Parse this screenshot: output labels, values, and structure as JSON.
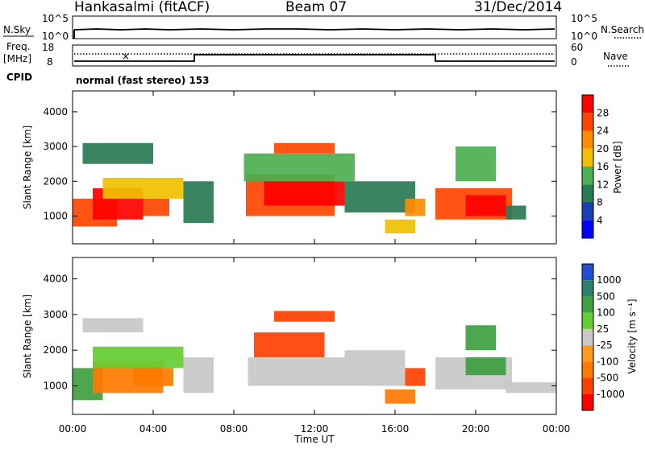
{
  "header": {
    "station": "Hankasalmi (fitACF)",
    "beam": "Beam 07",
    "date": "31/Dec/2014"
  },
  "panels": {
    "nsky": {
      "label": "N.Sky",
      "ticks_left": [
        "10^5",
        "10^0"
      ],
      "ticks_right": [
        "10^5",
        "10^0"
      ],
      "right_label": "N.Search"
    },
    "freq": {
      "label_line1": "Freq.",
      "label_line2": "[MHz]",
      "ticks_left": [
        "18",
        "8"
      ],
      "ticks_right": [
        "60",
        "0"
      ],
      "right_label": "Nave"
    },
    "cpid": {
      "label": "CPID",
      "text": "normal (fast stereo) 153"
    }
  },
  "chart_data": [
    {
      "type": "heatmap",
      "title": "",
      "ylabel": "Slant Range [km]",
      "xlabel": "",
      "ylim": [
        200,
        4600
      ],
      "yticks": [
        "1000",
        "2000",
        "3000",
        "4000"
      ],
      "colorbar": {
        "label": "Power [dB]",
        "ticks": [
          "28",
          "24",
          "20",
          "16",
          "12",
          "8",
          "4"
        ],
        "colors": [
          "#0000ff",
          "#1a3fb5",
          "#2a7a55",
          "#4caf50",
          "#f0c000",
          "#ff8c00",
          "#ff4500",
          "#ff0000"
        ]
      },
      "regions": [
        {
          "t": [
            0.0,
            2.2
          ],
          "r": [
            700,
            1500
          ],
          "value": 26
        },
        {
          "t": [
            1.0,
            3.5
          ],
          "r": [
            900,
            1800
          ],
          "value": 28
        },
        {
          "t": [
            3.5,
            4.8
          ],
          "r": [
            1000,
            1500
          ],
          "value": 26
        },
        {
          "t": [
            1.5,
            5.5
          ],
          "r": [
            1500,
            2100
          ],
          "value": 16
        },
        {
          "t": [
            0.5,
            4.0
          ],
          "r": [
            2500,
            3100
          ],
          "value": 8
        },
        {
          "t": [
            5.5,
            7.0
          ],
          "r": [
            800,
            2000
          ],
          "value": 8
        },
        {
          "t": [
            8.6,
            13.0
          ],
          "r": [
            1000,
            2200
          ],
          "value": 26
        },
        {
          "t": [
            9.5,
            13.5
          ],
          "r": [
            1300,
            2000
          ],
          "value": 28
        },
        {
          "t": [
            8.5,
            14.0
          ],
          "r": [
            2000,
            2800
          ],
          "value": 14
        },
        {
          "t": [
            10.0,
            13.0
          ],
          "r": [
            2800,
            3100
          ],
          "value": 24
        },
        {
          "t": [
            13.5,
            17.0
          ],
          "r": [
            1100,
            2000
          ],
          "value": 10
        },
        {
          "t": [
            15.5,
            17.0
          ],
          "r": [
            500,
            900
          ],
          "value": 16
        },
        {
          "t": [
            16.5,
            17.5
          ],
          "r": [
            1000,
            1500
          ],
          "value": 20
        },
        {
          "t": [
            18.0,
            21.8
          ],
          "r": [
            900,
            1800
          ],
          "value": 26
        },
        {
          "t": [
            19.5,
            21.5
          ],
          "r": [
            1000,
            1600
          ],
          "value": 28
        },
        {
          "t": [
            19.0,
            21.0
          ],
          "r": [
            2000,
            3000
          ],
          "value": 14
        },
        {
          "t": [
            21.5,
            22.5
          ],
          "r": [
            900,
            1300
          ],
          "value": 8
        }
      ]
    },
    {
      "type": "heatmap",
      "title": "",
      "ylabel": "Slant Range [km]",
      "xlabel": "Time UT",
      "ylim": [
        200,
        4600
      ],
      "yticks": [
        "1000",
        "2000",
        "3000",
        "4000"
      ],
      "xticks": [
        "00:00",
        "04:00",
        "08:00",
        "12:00",
        "16:00",
        "20:00",
        "00:00"
      ],
      "colorbar": {
        "label": "Velocity [m s⁻¹]",
        "ticks": [
          "1000",
          "500",
          "100",
          "25",
          "-25",
          "-100",
          "-500",
          "-1000"
        ],
        "colors": [
          "#1f4fd0",
          "#2f7f6f",
          "#3fa040",
          "#66cc33",
          "#c8c8c8",
          "#ff9a20",
          "#ff7a00",
          "#ff4000",
          "#ff0000"
        ]
      },
      "regions": [
        {
          "t": [
            0.0,
            1.5
          ],
          "r": [
            600,
            1500
          ],
          "value": 100
        },
        {
          "t": [
            1.0,
            4.5
          ],
          "r": [
            800,
            1700
          ],
          "value": -120
        },
        {
          "t": [
            3.0,
            5.0
          ],
          "r": [
            1000,
            1500
          ],
          "value": -200
        },
        {
          "t": [
            1.0,
            5.5
          ],
          "r": [
            1500,
            2100
          ],
          "value": 40
        },
        {
          "t": [
            0.5,
            3.5
          ],
          "r": [
            2500,
            2900
          ],
          "value": 0
        },
        {
          "t": [
            5.5,
            7.0
          ],
          "r": [
            800,
            1800
          ],
          "value": 0
        },
        {
          "t": [
            8.7,
            13.5
          ],
          "r": [
            1000,
            1800
          ],
          "value": 0
        },
        {
          "t": [
            9.0,
            12.5
          ],
          "r": [
            1800,
            2500
          ],
          "value": -300
        },
        {
          "t": [
            10.0,
            13.0
          ],
          "r": [
            2800,
            3100
          ],
          "value": -400
        },
        {
          "t": [
            13.5,
            16.5
          ],
          "r": [
            1000,
            2000
          ],
          "value": 0
        },
        {
          "t": [
            15.5,
            17.0
          ],
          "r": [
            500,
            900
          ],
          "value": -200
        },
        {
          "t": [
            16.5,
            17.5
          ],
          "r": [
            1000,
            1500
          ],
          "value": -300
        },
        {
          "t": [
            18.0,
            21.8
          ],
          "r": [
            900,
            1800
          ],
          "value": 0
        },
        {
          "t": [
            19.5,
            21.5
          ],
          "r": [
            1300,
            1800
          ],
          "value": 200
        },
        {
          "t": [
            19.5,
            21.0
          ],
          "r": [
            2000,
            2700
          ],
          "value": 150
        },
        {
          "t": [
            21.5,
            24.0
          ],
          "r": [
            800,
            1100
          ],
          "value": 0
        }
      ]
    }
  ]
}
